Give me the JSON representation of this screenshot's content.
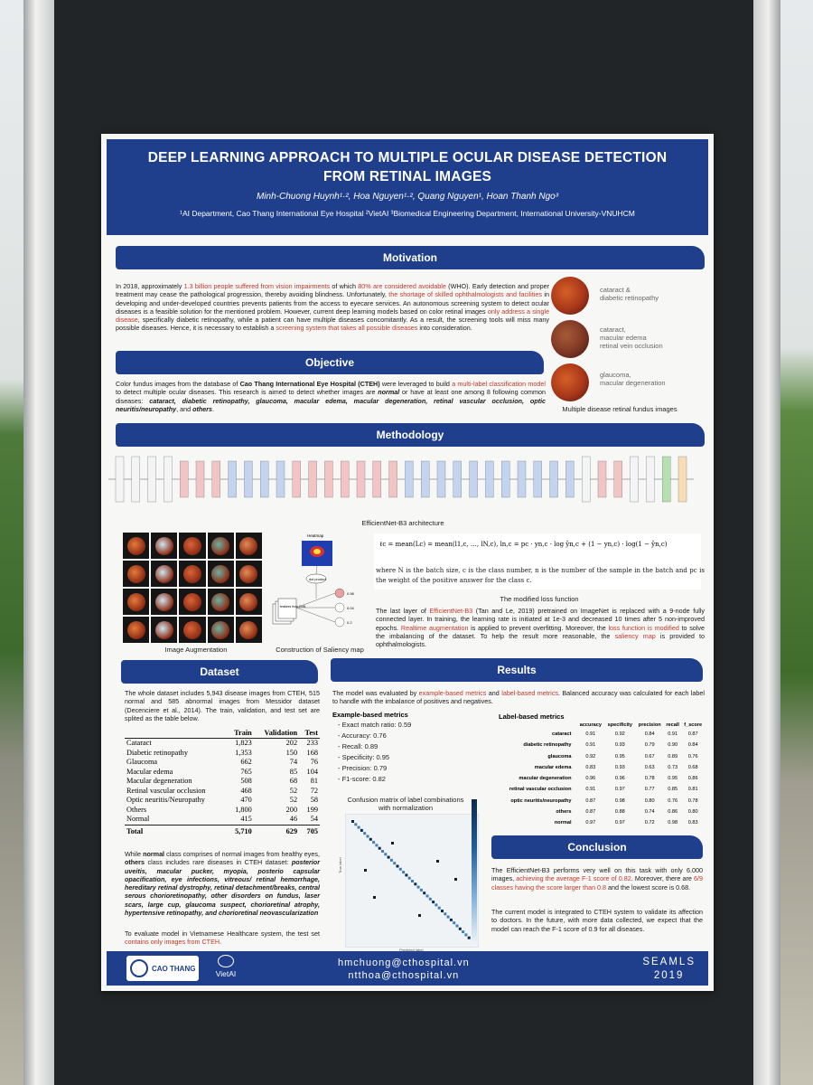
{
  "poster": {
    "title_line1": "DEEP LEARNING APPROACH TO MULTIPLE OCULAR DISEASE DETECTION",
    "title_line2": "FROM RETINAL IMAGES",
    "authors": "Minh-Chuong Huynh¹·², Hoa Nguyen¹·², Quang Nguyen¹, Hoan Thanh Ngo³",
    "affiliations": "¹AI Department, Cao Thang International Eye Hospital   ²VietAI   ³Biomedical Engineering Department, International University-VNUHCM"
  },
  "motivation": {
    "heading": "Motivation",
    "p1": "In 2018, approximately ",
    "h1": "1.3 billion people suffered from vision impairments",
    "p2": " of which ",
    "h2": "80% are considered avoidable",
    "p3": " (WHO). Early detection and proper treatment may cease the pathological progression, thereby avoiding blindness. Unfortunately, ",
    "h3": "the shortage of skilled ophthalmologists and facilities",
    "p4": " in developing and under-developed countries prevents patients from the access to eyecare services. An autonomous screening system to detect ocular diseases is a feasible solution for the mentioned problem. However, current deep learning models based on color retinal images ",
    "h4": "only address a single disease",
    "p5": ", specifically diabetic retinopathy, while a patient can have multiple diseases concomitantly. As a result, the screening tools will miss many possible diseases. Hence, it is necessary to establish a ",
    "h5": "screening system that takes all possible diseases",
    "p6": " into consideration."
  },
  "fundus": {
    "label1": "cataract &\ndiabetic retinopathy",
    "label2": "cataract,\nmacular edema\nretinal vein occlusion",
    "label3": "glaucoma,\nmacular degeneration",
    "caption": "Multiple disease retinal fundus images"
  },
  "objective": {
    "heading": "Objective",
    "p1": "Color fundus images from the database of ",
    "b1": "Cao Thang International Eye Hospital (CTEH)",
    "p2": " were leveraged to build ",
    "h1": "a multi-label classification model",
    "p3": " to detect multiple ocular diseases. This research is aimed to detect whether images are ",
    "b2": "normal",
    "p4": " or have at least one among 8 following common diseases: ",
    "b3": "cataract, diabetic retinopathy, glaucoma, macular edema, macular degeneration, retinal vascular occlusion, optic neuritis/neuropathy",
    "p5": ", and ",
    "b4": "others",
    "p6": "."
  },
  "methodology": {
    "heading": "Methodology",
    "arch_caption": "EfficientNet-B3 architecture",
    "aug_caption": "Image Augmentation",
    "sal_caption": "Construction of Saliency map",
    "heatmap_label": "Heatmap",
    "dot_label": "dot product",
    "features_label": "features from CNN",
    "sal_values": [
      "0.98",
      "0.04",
      "0.2"
    ],
    "loss_formula": "ℓc = mean(Lc) = mean(l1,c, …, lN,c),    ln,c = pc · yn,c · log ŷn,c + (1 − yn,c) · log(1 − ŷn,c)",
    "loss_where": "where N is the batch size, c is the class number, n is the number of the sample in the batch and pc is the weight of the positive answer for the class c.",
    "loss_caption": "The modified loss function",
    "p1": "The last layer of ",
    "h1": "EfficientNet-B3",
    "p2": " (Tan and Le, 2019) pretrained on ImageNet is replaced with a 9-node fully connected layer. In training, the learning rate is initiated at 1e-3 and decreased 10 times after 5 non-improved epochs. ",
    "h2": "Realtime augmentation",
    "p3": " is applied to prevent overfitting. Moreover, the ",
    "h3": "loss function is modified",
    "p4": " to solve the imbalancing of the dataset. To help the result more reasonable, the ",
    "h4": "saliency map",
    "p5": " is provided to ophthalmologists."
  },
  "dataset": {
    "heading": "Dataset",
    "intro": "The whole dataset includes 5,943 disease images from CTEH, 515 normal and 585 abnormal images from Messidor dataset (Decenciere et al., 2014). The train, validation, and test set are splited as the table below.",
    "columns": [
      "",
      "Train",
      "Validation",
      "Test"
    ],
    "rows": [
      [
        "Cataract",
        "1,823",
        "202",
        "233"
      ],
      [
        "Diabetic retinopathy",
        "1,353",
        "150",
        "168"
      ],
      [
        "Glaucoma",
        "662",
        "74",
        "76"
      ],
      [
        "Macular edema",
        "765",
        "85",
        "104"
      ],
      [
        "Macular degeneration",
        "508",
        "68",
        "81"
      ],
      [
        "Retinal vascular occlusion",
        "468",
        "52",
        "72"
      ],
      [
        "Optic neuritis/Neuropathy",
        "470",
        "52",
        "58"
      ],
      [
        "Others",
        "1,800",
        "200",
        "199"
      ],
      [
        "Normal",
        "415",
        "46",
        "54"
      ]
    ],
    "total": [
      "Total",
      "5,710",
      "629",
      "705"
    ],
    "note1a": "While ",
    "note1b": "normal",
    "note1c": " class comprises of normal images from healthy eyes, ",
    "note1d": "others",
    "note1e": " class includes rare diseases in CTEH dataset: ",
    "note1f": "posterior uveitis, macular pucker, myopia, posterio capsular opacification, eye infections, vitreous/ retinal hemorrhage, hereditary retinal dystrophy, retinal detachment/breaks, central serous chorioretinopathy, other disorders on fundus, laser scars, large cup, glaucoma suspect, chorioretinal atrophy, hypertensive retinopathy, and chorioretinal neovascularization",
    "note2a": "To evaluate model in Vietnamese Healthcare system, the test set ",
    "note2b": "contains only images from CTEH",
    "note2c": "."
  },
  "results": {
    "heading": "Results",
    "p1": "The model was evaluated by ",
    "h1": "example-based metrics",
    "p2": " and ",
    "h2": "label-based metrics",
    "p3": ". Balanced accuracy was calculated for each label to handle with the imbalance of positives and negatives.",
    "example_title": "Example-based metrics",
    "example_items": [
      "- Exact match ratio: 0.59",
      "- Accuracy: 0.76",
      "- Recall: 0.89",
      "- Specificity: 0.95",
      "- Precision: 0.79",
      "- F1-score: 0.82"
    ],
    "cm_title": "Confusion matrix of label combinations\nwith normalization",
    "cm_ylabel": "True label",
    "cm_xlabel": "Predicted label",
    "label_title": "Label-based metrics",
    "label_columns": [
      "",
      "accuracy",
      "specificity",
      "precision",
      "recall",
      "f_score"
    ],
    "label_rows": [
      [
        "cataract",
        "0.91",
        "0.92",
        "0.84",
        "0.91",
        "0.87"
      ],
      [
        "diabetic retinopathy",
        "0.91",
        "0.93",
        "0.79",
        "0.90",
        "0.84"
      ],
      [
        "glaucoma",
        "0.92",
        "0.95",
        "0.67",
        "0.89",
        "0.76"
      ],
      [
        "macular edema",
        "0.83",
        "0.93",
        "0.63",
        "0.73",
        "0.68"
      ],
      [
        "macular degeneration",
        "0.96",
        "0.96",
        "0.78",
        "0.95",
        "0.86"
      ],
      [
        "retinal vascular occlusion",
        "0.91",
        "0.97",
        "0.77",
        "0.85",
        "0.81"
      ],
      [
        "optic neuritis/neuropathy",
        "0.87",
        "0.98",
        "0.80",
        "0.76",
        "0.78"
      ],
      [
        "others",
        "0.87",
        "0.88",
        "0.74",
        "0.86",
        "0.80"
      ],
      [
        "normal",
        "0.97",
        "0.97",
        "0.72",
        "0.98",
        "0.83"
      ]
    ]
  },
  "conclusion": {
    "heading": "Conclusion",
    "p1": "The EfficientNet-B3 performs very well on this task with only 6.000 images, ",
    "h1": "achieving the average F-1 score of 0.82",
    "p2": ". Moreover, there are ",
    "h2": "6/9 classes having the score larger than 0.8",
    "p3": " and the lowest score is 0.68.",
    "p4": "The current model is integrated to CTEH system to validate its affection to doctors. In the future, with more data collected, we expect that the model can reach the F-1 score of 0.9 for all diseases."
  },
  "footer": {
    "logo1": "CAO THANG",
    "logo2": "VietAI",
    "email1": "hmchuong@cthospital.vn",
    "email2": "ntthoa@cthospital.vn",
    "conf1": "SEAMLS",
    "conf2": "2019"
  },
  "colors": {
    "header": "#1f3f8c",
    "highlight": "#c0392b"
  }
}
